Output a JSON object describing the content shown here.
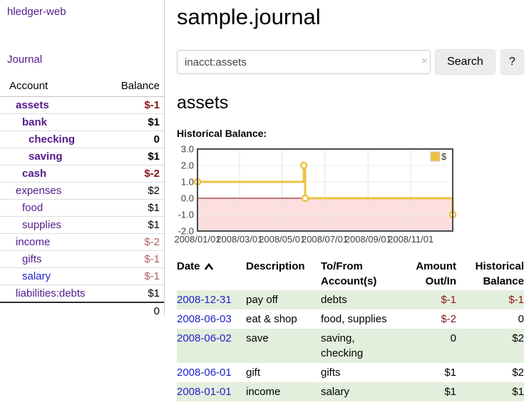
{
  "sidebar": {
    "brand": "hledger-web",
    "nav": {
      "journal_label": "Journal"
    },
    "accounts_table": {
      "headers": {
        "account": "Account",
        "balance": "Balance"
      },
      "rows": [
        {
          "name": "assets",
          "depth": 1,
          "bold": true,
          "link": "purple",
          "balance": "$-1",
          "balance_style": "neg bold"
        },
        {
          "name": "bank",
          "depth": 2,
          "bold": true,
          "link": "purple",
          "balance": "$1",
          "balance_style": "bold"
        },
        {
          "name": "checking",
          "depth": 3,
          "bold": true,
          "link": "purple",
          "balance": "0",
          "balance_style": "bold"
        },
        {
          "name": "saving",
          "depth": 3,
          "bold": true,
          "link": "purple",
          "balance": "$1",
          "balance_style": "bold"
        },
        {
          "name": "cash",
          "depth": 2,
          "bold": true,
          "link": "purple",
          "balance": "$-2",
          "balance_style": "neg bold"
        },
        {
          "name": "expenses",
          "depth": 1,
          "bold": false,
          "link": "purple",
          "balance": "$2",
          "balance_style": ""
        },
        {
          "name": "food",
          "depth": 2,
          "bold": false,
          "link": "purple",
          "balance": "$1",
          "balance_style": ""
        },
        {
          "name": "supplies",
          "depth": 2,
          "bold": false,
          "link": "purple",
          "balance": "$1",
          "balance_style": ""
        },
        {
          "name": "income",
          "depth": 1,
          "bold": false,
          "link": "purple",
          "balance": "$-2",
          "balance_style": "soft"
        },
        {
          "name": "gifts",
          "depth": 2,
          "bold": false,
          "link": "purple",
          "balance": "$-1",
          "balance_style": "soft"
        },
        {
          "name": "salary",
          "depth": 2,
          "bold": false,
          "link": "blue",
          "balance": "$-1",
          "balance_style": "soft"
        },
        {
          "name": "liabilities:debts",
          "depth": 1,
          "bold": false,
          "link": "purple",
          "balance": "$1",
          "balance_style": ""
        }
      ],
      "total": "0"
    }
  },
  "main": {
    "title": "sample.journal",
    "search": {
      "value": "inacct:assets",
      "clear_icon": "×",
      "search_button": "Search",
      "help_button": "?"
    },
    "account_heading": "assets",
    "chart_label": "Historical Balance:",
    "register_table": {
      "headers": [
        {
          "label": "Date",
          "sorted": "ascending"
        },
        {
          "label": "Description"
        },
        {
          "label": "To/From Account(s)"
        },
        {
          "label": "Amount Out/In"
        },
        {
          "label": "Historical Balance"
        }
      ],
      "rows": [
        {
          "date": "2008-12-31",
          "description": "pay off",
          "accounts": "debts",
          "amount": "$-1",
          "amount_negative": true,
          "balance": "$-1",
          "balance_negative": true
        },
        {
          "date": "2008-06-03",
          "description": "eat & shop",
          "accounts": "food, supplies",
          "amount": "$-2",
          "amount_negative": true,
          "balance": "0",
          "balance_negative": false
        },
        {
          "date": "2008-06-02",
          "description": "save",
          "accounts": "saving, checking",
          "amount": "0",
          "amount_negative": false,
          "balance": "$2",
          "balance_negative": false
        },
        {
          "date": "2008-06-01",
          "description": "gift",
          "accounts": "gifts",
          "amount": "$1",
          "amount_negative": false,
          "balance": "$2",
          "balance_negative": false
        },
        {
          "date": "2008-01-01",
          "description": "income",
          "accounts": "salary",
          "amount": "$1",
          "amount_negative": false,
          "balance": "$1",
          "balance_negative": false
        }
      ]
    }
  },
  "chart_data": {
    "type": "line",
    "step": true,
    "title": "Historical Balance:",
    "series": [
      {
        "name": "$",
        "color": "#edc240",
        "points": [
          [
            "2008/01/01",
            1.0
          ],
          [
            "2008/06/01",
            2.0
          ],
          [
            "2008/06/03",
            0.0
          ],
          [
            "2008/12/31",
            -1.0
          ]
        ]
      }
    ],
    "xlim": [
      "2008/01/01",
      "2008/12/31"
    ],
    "ylim": [
      -2.0,
      3.0
    ],
    "y_ticks": [
      3.0,
      2.0,
      1.0,
      0.0,
      -1.0,
      -2.0
    ],
    "x_ticks": [
      "2008/01/01",
      "2008/03/01",
      "2008/05/01",
      "2008/07/01",
      "2008/09/01",
      "2008/11/01"
    ],
    "grid": true,
    "legend": {
      "label": "$",
      "position": "top-right"
    },
    "colors": {
      "frame": "#4a4a4a",
      "grid_h": "#ededed",
      "grid_v": "#e3e3e3",
      "zero_line": "#8b0000",
      "negative_region": "#fcdede",
      "axis_text": "#3f3f3f",
      "legend_box_border": "#cfcfcf"
    }
  }
}
